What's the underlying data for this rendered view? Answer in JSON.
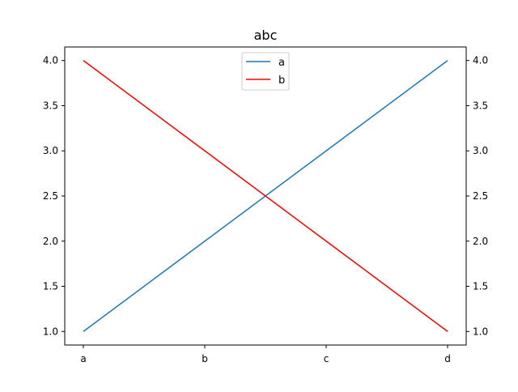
{
  "chart_data": {
    "type": "line",
    "title": "abc",
    "xlabel": "",
    "ylabel": "",
    "categories": [
      "a",
      "b",
      "c",
      "d"
    ],
    "series": [
      {
        "name": "a",
        "values": [
          1.0,
          2.0,
          3.0,
          4.0
        ],
        "color": "#1f77b4"
      },
      {
        "name": "b",
        "values": [
          4.0,
          3.0,
          2.0,
          1.0
        ],
        "color": "#ff0000"
      }
    ],
    "ylim": [
      0.85,
      4.15
    ],
    "yticks": [
      1.0,
      1.5,
      2.0,
      2.5,
      3.0,
      3.5,
      4.0
    ],
    "ytick_labels": [
      "1.0",
      "1.5",
      "2.0",
      "2.5",
      "3.0",
      "3.5",
      "4.0"
    ],
    "secondary_y_axis": true,
    "grid": false,
    "legend_position": "upper-center"
  }
}
